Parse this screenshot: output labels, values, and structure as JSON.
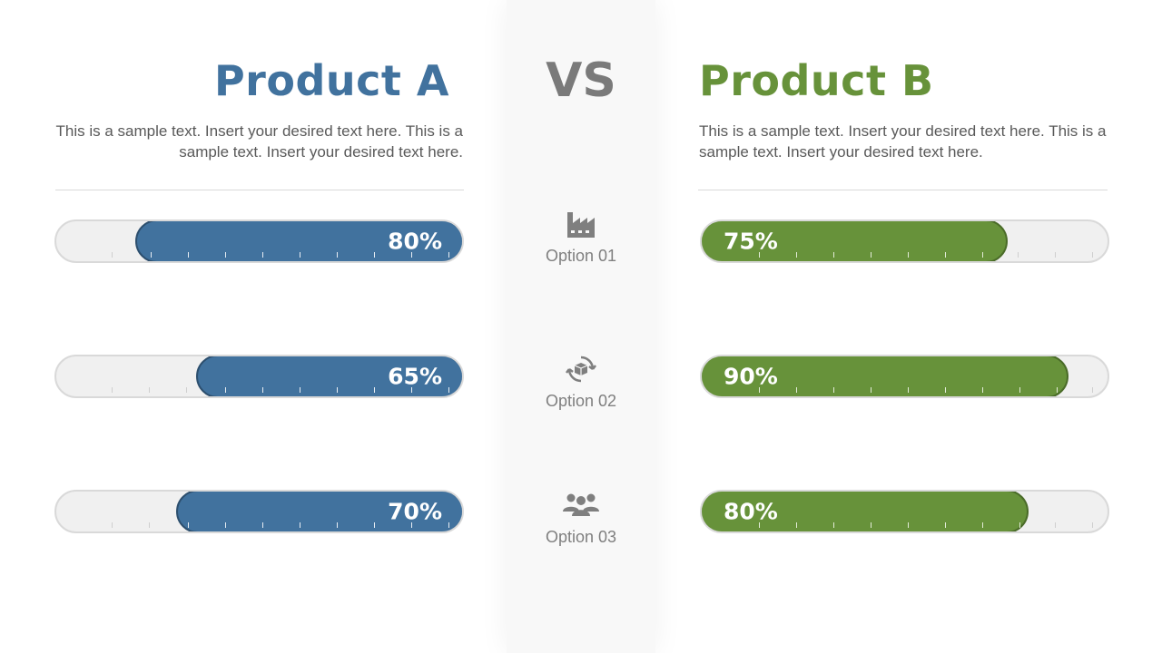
{
  "product_a": {
    "title": "Product A",
    "description": "This is a sample text. Insert your desired text here. This is a sample text. Insert your desired text here.",
    "color": "#41729e"
  },
  "product_b": {
    "title": "Product B",
    "description": "This is a sample text. Insert your desired text here. This is a sample text. Insert your desired text here.",
    "color": "#67923a"
  },
  "vs_label": "VS",
  "options": [
    {
      "label": "Option 01",
      "icon": "factory-icon",
      "a_value": 80,
      "a_label": "80%",
      "b_value": 75,
      "b_label": "75%"
    },
    {
      "label": "Option 02",
      "icon": "recycle-box-icon",
      "a_value": 65,
      "a_label": "65%",
      "b_value": 90,
      "b_label": "90%"
    },
    {
      "label": "Option 03",
      "icon": "team-icon",
      "a_value": 70,
      "a_label": "70%",
      "b_value": 80,
      "b_label": "80%"
    }
  ]
}
